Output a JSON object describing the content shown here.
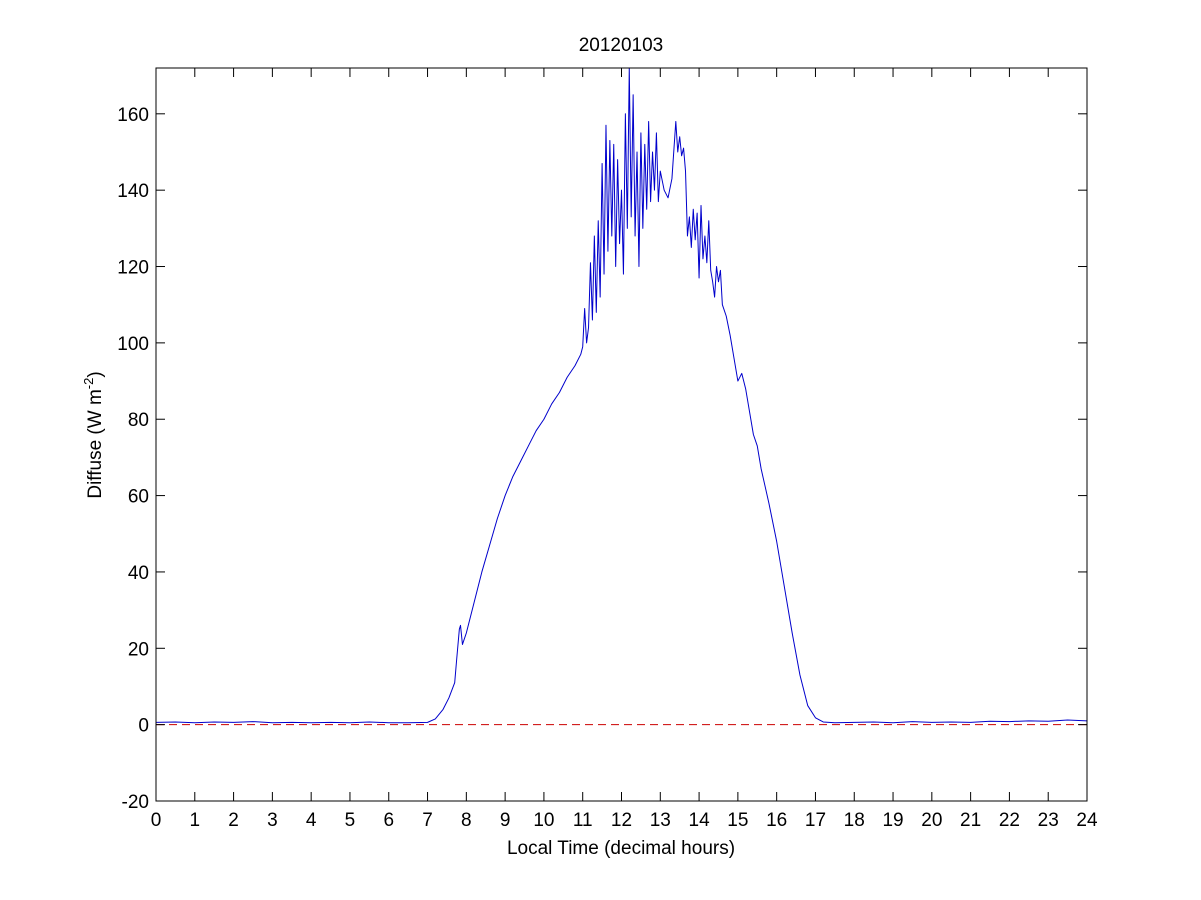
{
  "chart_data": {
    "type": "line",
    "title": "20120103",
    "xlabel": "Local Time (decimal hours)",
    "ylabel_main": "Diffuse (W m",
    "ylabel_sup": "-2",
    "ylabel_close": ")",
    "xlim": [
      0,
      24
    ],
    "ylim": [
      -20,
      172
    ],
    "xticks": [
      0,
      1,
      2,
      3,
      4,
      5,
      6,
      7,
      8,
      9,
      10,
      11,
      12,
      13,
      14,
      15,
      16,
      17,
      18,
      19,
      20,
      21,
      22,
      23,
      24
    ],
    "yticks": [
      -20,
      0,
      20,
      40,
      60,
      80,
      100,
      120,
      140,
      160
    ],
    "grid": false,
    "series": [
      {
        "color": "#0000cc",
        "style": "solid",
        "points": [
          [
            0,
            0.6
          ],
          [
            0.5,
            0.7
          ],
          [
            1,
            0.5
          ],
          [
            1.5,
            0.7
          ],
          [
            2,
            0.6
          ],
          [
            2.5,
            0.8
          ],
          [
            3,
            0.5
          ],
          [
            3.5,
            0.6
          ],
          [
            4,
            0.5
          ],
          [
            4.5,
            0.6
          ],
          [
            5,
            0.5
          ],
          [
            5.5,
            0.7
          ],
          [
            6,
            0.5
          ],
          [
            6.5,
            0.5
          ],
          [
            7,
            0.6
          ],
          [
            7.2,
            1.5
          ],
          [
            7.4,
            4
          ],
          [
            7.55,
            7
          ],
          [
            7.7,
            11
          ],
          [
            7.75,
            17
          ],
          [
            7.82,
            25
          ],
          [
            7.85,
            26
          ],
          [
            7.9,
            21
          ],
          [
            8,
            24
          ],
          [
            8.2,
            32
          ],
          [
            8.4,
            40
          ],
          [
            8.6,
            47
          ],
          [
            8.8,
            54
          ],
          [
            9,
            60
          ],
          [
            9.2,
            65
          ],
          [
            9.4,
            69
          ],
          [
            9.6,
            73
          ],
          [
            9.8,
            77
          ],
          [
            10,
            80
          ],
          [
            10.2,
            84
          ],
          [
            10.4,
            87
          ],
          [
            10.6,
            91
          ],
          [
            10.8,
            94
          ],
          [
            10.95,
            97
          ],
          [
            11,
            99
          ],
          [
            11.05,
            109
          ],
          [
            11.1,
            100
          ],
          [
            11.15,
            104
          ],
          [
            11.2,
            121
          ],
          [
            11.25,
            106
          ],
          [
            11.3,
            128
          ],
          [
            11.35,
            108
          ],
          [
            11.4,
            132
          ],
          [
            11.45,
            112
          ],
          [
            11.5,
            147
          ],
          [
            11.55,
            118
          ],
          [
            11.6,
            157
          ],
          [
            11.65,
            124
          ],
          [
            11.7,
            153
          ],
          [
            11.75,
            128
          ],
          [
            11.8,
            152
          ],
          [
            11.85,
            120
          ],
          [
            11.9,
            148
          ],
          [
            11.95,
            126
          ],
          [
            12,
            140
          ],
          [
            12.05,
            118
          ],
          [
            12.1,
            160
          ],
          [
            12.15,
            130
          ],
          [
            12.2,
            172
          ],
          [
            12.25,
            133
          ],
          [
            12.3,
            165
          ],
          [
            12.35,
            128
          ],
          [
            12.4,
            150
          ],
          [
            12.45,
            120
          ],
          [
            12.5,
            155
          ],
          [
            12.55,
            130
          ],
          [
            12.6,
            152
          ],
          [
            12.65,
            135
          ],
          [
            12.7,
            158
          ],
          [
            12.75,
            137
          ],
          [
            12.8,
            150
          ],
          [
            12.85,
            140
          ],
          [
            12.9,
            155
          ],
          [
            12.95,
            137
          ],
          [
            13,
            145
          ],
          [
            13.1,
            140
          ],
          [
            13.2,
            138
          ],
          [
            13.3,
            143
          ],
          [
            13.4,
            158
          ],
          [
            13.45,
            150
          ],
          [
            13.5,
            154
          ],
          [
            13.55,
            149
          ],
          [
            13.6,
            151
          ],
          [
            13.65,
            145
          ],
          [
            13.7,
            128
          ],
          [
            13.75,
            133
          ],
          [
            13.8,
            125
          ],
          [
            13.85,
            135
          ],
          [
            13.9,
            127
          ],
          [
            13.95,
            134
          ],
          [
            14,
            117
          ],
          [
            14.05,
            136
          ],
          [
            14.1,
            122
          ],
          [
            14.15,
            128
          ],
          [
            14.2,
            121
          ],
          [
            14.25,
            132
          ],
          [
            14.3,
            119
          ],
          [
            14.35,
            116
          ],
          [
            14.4,
            112
          ],
          [
            14.45,
            120
          ],
          [
            14.5,
            116
          ],
          [
            14.55,
            119
          ],
          [
            14.6,
            110
          ],
          [
            14.7,
            107
          ],
          [
            14.8,
            102
          ],
          [
            14.9,
            96
          ],
          [
            15,
            90
          ],
          [
            15.1,
            92
          ],
          [
            15.2,
            88
          ],
          [
            15.3,
            82
          ],
          [
            15.4,
            76
          ],
          [
            15.5,
            73
          ],
          [
            15.6,
            67
          ],
          [
            15.8,
            58
          ],
          [
            16,
            48
          ],
          [
            16.2,
            36
          ],
          [
            16.4,
            24
          ],
          [
            16.6,
            13
          ],
          [
            16.8,
            5
          ],
          [
            17,
            1.8
          ],
          [
            17.2,
            0.7
          ],
          [
            17.5,
            0.5
          ],
          [
            18,
            0.6
          ],
          [
            18.5,
            0.7
          ],
          [
            19,
            0.5
          ],
          [
            19.5,
            0.8
          ],
          [
            20,
            0.6
          ],
          [
            20.5,
            0.7
          ],
          [
            21,
            0.6
          ],
          [
            21.5,
            0.9
          ],
          [
            22,
            0.8
          ],
          [
            22.5,
            1
          ],
          [
            23,
            0.9
          ],
          [
            23.5,
            1.2
          ],
          [
            24,
            1
          ]
        ]
      },
      {
        "color": "#cc0000",
        "style": "dashed",
        "points": [
          [
            0,
            0
          ],
          [
            24,
            0
          ]
        ]
      }
    ]
  }
}
